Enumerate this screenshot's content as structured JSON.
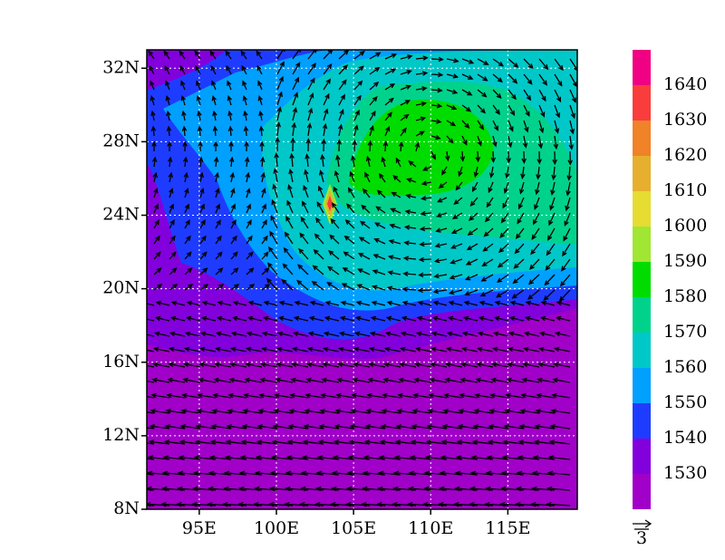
{
  "map": {
    "xlim": [
      91.6,
      119.5
    ],
    "ylim": [
      8,
      33
    ],
    "xticks": [
      {
        "value": 95,
        "label": "95E"
      },
      {
        "value": 100,
        "label": "100E"
      },
      {
        "value": 105,
        "label": "105E"
      },
      {
        "value": 110,
        "label": "110E"
      },
      {
        "value": 115,
        "label": "115E"
      }
    ],
    "yticks": [
      {
        "value": 8,
        "label": "8N"
      },
      {
        "value": 12,
        "label": "12N"
      },
      {
        "value": 16,
        "label": "16N"
      },
      {
        "value": 20,
        "label": "20N"
      },
      {
        "value": 24,
        "label": "24N"
      },
      {
        "value": 28,
        "label": "28N"
      },
      {
        "value": 32,
        "label": "32N"
      }
    ],
    "grid": true,
    "colorbar": {
      "labels": [
        1530,
        1540,
        1550,
        1560,
        1570,
        1580,
        1590,
        1600,
        1610,
        1620,
        1630,
        1640
      ],
      "colors": [
        "#a000c8",
        "#8200dc",
        "#1e3cff",
        "#00a0ff",
        "#00c8c8",
        "#00d28c",
        "#00dc00",
        "#a0e632",
        "#e6dc32",
        "#e6af2d",
        "#f08228",
        "#fa3c3c",
        "#f00082"
      ]
    },
    "reference_vector": {
      "label": "3"
    }
  }
}
